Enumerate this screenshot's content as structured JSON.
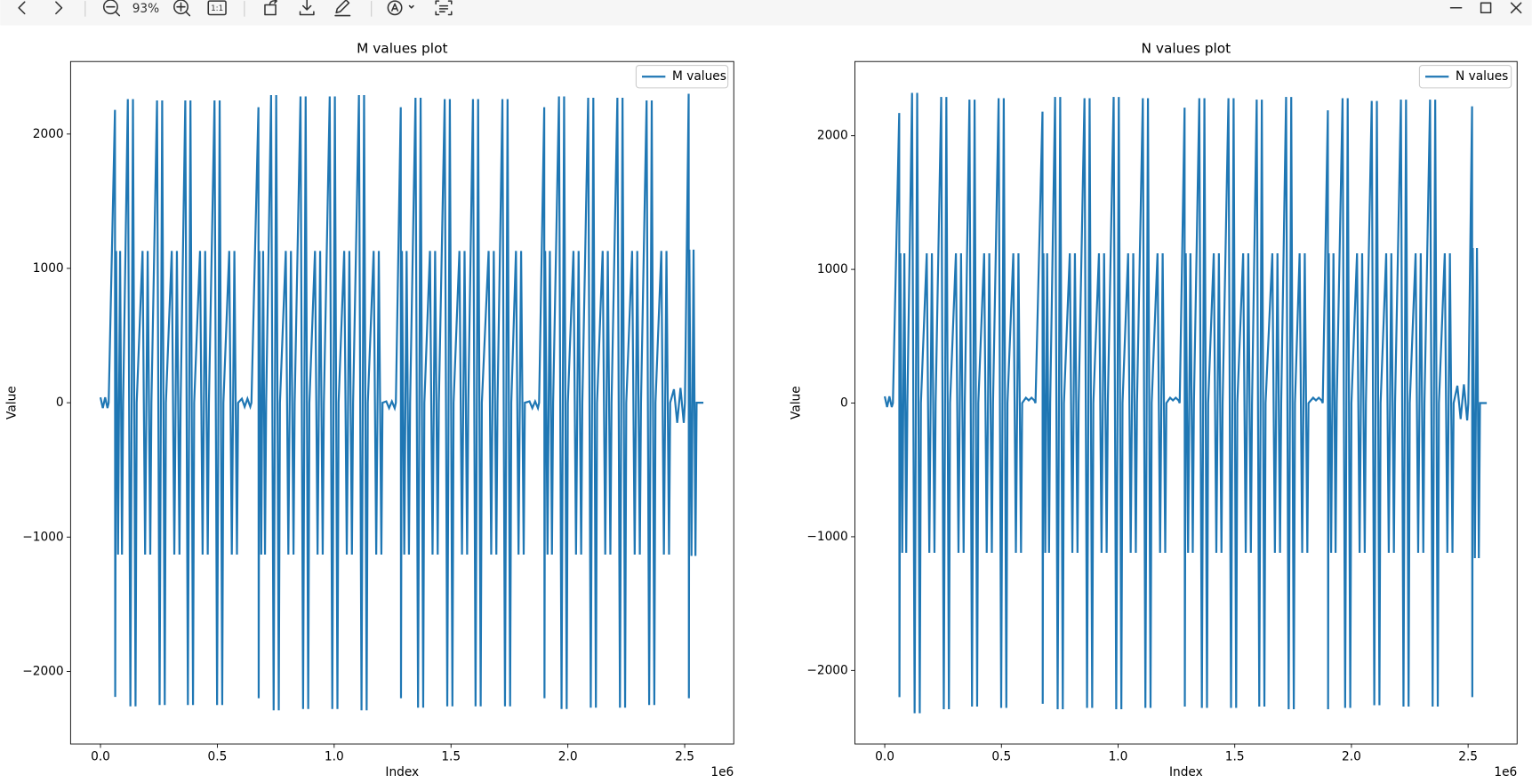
{
  "toolbar": {
    "zoom": "93%",
    "actual_size": "1:1"
  },
  "chart_data": [
    {
      "type": "line",
      "title": "M values plot",
      "xlabel": "Index",
      "ylabel": "Value",
      "x_offset_label": "1e6",
      "legend": "upper right",
      "grid": false,
      "xlim": [
        -0.128,
        2.71
      ],
      "ylim": [
        -2540,
        2540
      ],
      "xticks": [
        {
          "value": 0,
          "label": "0.0"
        },
        0.5,
        {
          "value": 1,
          "label": "1.0"
        },
        1.5,
        {
          "value": 2,
          "label": "2.0"
        },
        2.5
      ],
      "yticks": [
        {
          "value": -2000,
          "label": "−2000"
        },
        {
          "value": -1000,
          "label": "−1000"
        },
        0,
        1000,
        2000
      ],
      "x": [
        0,
        0.01,
        0.02,
        0.03,
        0.035,
        0.062,
        0.063,
        0.067,
        0.075,
        0.084,
        0.092,
        0.097,
        0.117,
        0.128,
        0.139,
        0.15,
        0.155,
        0.18,
        0.191,
        0.202,
        0.213,
        0.218,
        0.242,
        0.253,
        0.264,
        0.275,
        0.28,
        0.305,
        0.316,
        0.327,
        0.338,
        0.343,
        0.363,
        0.374,
        0.385,
        0.396,
        0.401,
        0.426,
        0.437,
        0.448,
        0.459,
        0.464,
        0.488,
        0.499,
        0.51,
        0.521,
        0.526,
        0.551,
        0.562,
        0.573,
        0.584,
        0.589,
        0.605,
        0.617,
        0.629,
        0.641,
        0.646,
        0.676,
        0.677,
        0.68,
        0.688,
        0.696,
        0.704,
        0.709,
        0.73,
        0.741,
        0.752,
        0.763,
        0.768,
        0.793,
        0.804,
        0.815,
        0.826,
        0.831,
        0.856,
        0.867,
        0.878,
        0.889,
        0.894,
        0.918,
        0.929,
        0.94,
        0.951,
        0.956,
        0.981,
        0.992,
        1.003,
        1.014,
        1.019,
        1.043,
        1.054,
        1.065,
        1.076,
        1.081,
        1.106,
        1.117,
        1.128,
        1.139,
        1.144,
        1.169,
        1.18,
        1.191,
        1.202,
        1.207,
        1.223,
        1.235,
        1.247,
        1.259,
        1.264,
        1.285,
        1.286,
        1.29,
        1.3,
        1.31,
        1.32,
        1.325,
        1.348,
        1.359,
        1.37,
        1.381,
        1.386,
        1.41,
        1.421,
        1.432,
        1.443,
        1.448,
        1.473,
        1.484,
        1.495,
        1.506,
        1.511,
        1.536,
        1.547,
        1.558,
        1.569,
        1.574,
        1.594,
        1.605,
        1.616,
        1.627,
        1.632,
        1.661,
        1.672,
        1.683,
        1.694,
        1.699,
        1.72,
        1.731,
        1.742,
        1.753,
        1.758,
        1.778,
        1.789,
        1.8,
        1.811,
        1.816,
        1.836,
        1.848,
        1.86,
        1.872,
        1.877,
        1.899,
        1.9,
        1.903,
        1.913,
        1.923,
        1.932,
        1.937,
        1.962,
        1.973,
        1.984,
        1.995,
        2,
        2.024,
        2.035,
        2.046,
        2.057,
        2.062,
        2.087,
        2.098,
        2.109,
        2.12,
        2.125,
        2.149,
        2.16,
        2.171,
        2.182,
        2.187,
        2.212,
        2.223,
        2.234,
        2.245,
        2.25,
        2.275,
        2.286,
        2.297,
        2.308,
        2.313,
        2.337,
        2.348,
        2.359,
        2.37,
        2.375,
        2.4,
        2.411,
        2.422,
        2.433,
        2.438,
        2.454,
        2.468,
        2.482,
        2.496,
        2.501,
        2.517,
        2.518,
        2.52,
        2.529,
        2.538,
        2.546,
        2.551,
        2.58
      ],
      "series": [
        {
          "name": "M values",
          "color": "#1f77b4",
          "values": [
            40,
            -40,
            40,
            -40,
            0,
            2180,
            -2190,
            1130,
            -1130,
            1130,
            -1130,
            0,
            2260,
            -2260,
            2260,
            -2260,
            0,
            1130,
            -1130,
            1130,
            -1130,
            0,
            2250,
            -2250,
            2250,
            -2250,
            0,
            1130,
            -1130,
            1130,
            -1130,
            0,
            2250,
            -2250,
            2250,
            -2250,
            0,
            1130,
            -1130,
            1130,
            -1130,
            0,
            2250,
            -2250,
            2250,
            -2250,
            0,
            1130,
            -1130,
            1130,
            -1130,
            0,
            30,
            -30,
            30,
            -30,
            0,
            2200,
            -2200,
            1130,
            -1130,
            1130,
            -1130,
            0,
            2290,
            -2290,
            2290,
            -2290,
            0,
            1130,
            -1130,
            1130,
            -1130,
            0,
            2280,
            -2280,
            2280,
            -2280,
            0,
            1130,
            -1130,
            1130,
            -1130,
            0,
            2280,
            -2280,
            2280,
            -2280,
            0,
            1130,
            -1130,
            1130,
            -1130,
            0,
            2290,
            -2290,
            2290,
            -2290,
            0,
            1130,
            -1130,
            1130,
            -1130,
            0,
            10,
            -40,
            10,
            -40,
            0,
            2200,
            -2200,
            1130,
            -1130,
            1130,
            -1130,
            0,
            2270,
            -2270,
            2270,
            -2270,
            0,
            1130,
            -1130,
            1130,
            -1130,
            0,
            2260,
            -2260,
            2260,
            -2260,
            0,
            1130,
            -1130,
            1130,
            -1130,
            0,
            2260,
            -2260,
            2260,
            -2260,
            0,
            1130,
            -1130,
            1130,
            -1130,
            0,
            2260,
            -2260,
            2260,
            -2260,
            0,
            1130,
            -1130,
            1130,
            -1130,
            0,
            10,
            -40,
            10,
            -40,
            0,
            2200,
            -2200,
            1130,
            -1130,
            1130,
            -1130,
            0,
            2280,
            -2280,
            2280,
            -2280,
            0,
            1130,
            -1130,
            1130,
            -1130,
            0,
            2270,
            -2270,
            2270,
            -2270,
            0,
            1130,
            -1130,
            1130,
            -1130,
            0,
            2270,
            -2270,
            2270,
            -2270,
            0,
            1130,
            -1130,
            1130,
            -1130,
            0,
            2250,
            -2250,
            2250,
            -2250,
            0,
            1130,
            -1130,
            1130,
            -1130,
            0,
            100,
            -150,
            110,
            -150,
            0,
            2300,
            -2200,
            1140,
            -1140,
            1140,
            -1140,
            0,
            0
          ]
        }
      ]
    },
    {
      "type": "line",
      "title": "N values plot",
      "xlabel": "Index",
      "ylabel": "Value",
      "x_offset_label": "1e6",
      "legend": "upper right",
      "grid": false,
      "xlim": [
        -0.128,
        2.71
      ],
      "ylim": [
        -2550,
        2555
      ],
      "xticks": [
        {
          "value": 0,
          "label": "0.0"
        },
        0.5,
        {
          "value": 1,
          "label": "1.0"
        },
        1.5,
        {
          "value": 2,
          "label": "2.0"
        },
        2.5
      ],
      "yticks": [
        {
          "value": -2000,
          "label": "−2000"
        },
        {
          "value": -1000,
          "label": "−1000"
        },
        0,
        1000,
        2000
      ],
      "x": [
        0,
        0.01,
        0.02,
        0.03,
        0.035,
        0.062,
        0.063,
        0.067,
        0.075,
        0.084,
        0.092,
        0.097,
        0.117,
        0.128,
        0.139,
        0.15,
        0.155,
        0.18,
        0.191,
        0.202,
        0.213,
        0.218,
        0.242,
        0.253,
        0.264,
        0.275,
        0.28,
        0.305,
        0.316,
        0.327,
        0.338,
        0.343,
        0.363,
        0.374,
        0.385,
        0.396,
        0.401,
        0.426,
        0.437,
        0.448,
        0.459,
        0.464,
        0.488,
        0.499,
        0.51,
        0.521,
        0.526,
        0.551,
        0.562,
        0.573,
        0.584,
        0.589,
        0.605,
        0.617,
        0.629,
        0.641,
        0.646,
        0.676,
        0.677,
        0.68,
        0.688,
        0.696,
        0.704,
        0.709,
        0.73,
        0.741,
        0.752,
        0.763,
        0.768,
        0.793,
        0.804,
        0.815,
        0.826,
        0.831,
        0.856,
        0.867,
        0.878,
        0.889,
        0.894,
        0.918,
        0.929,
        0.94,
        0.951,
        0.956,
        0.981,
        0.992,
        1.003,
        1.014,
        1.019,
        1.043,
        1.054,
        1.065,
        1.076,
        1.081,
        1.106,
        1.117,
        1.128,
        1.139,
        1.144,
        1.169,
        1.18,
        1.191,
        1.202,
        1.207,
        1.223,
        1.235,
        1.247,
        1.259,
        1.264,
        1.285,
        1.286,
        1.29,
        1.3,
        1.31,
        1.32,
        1.325,
        1.348,
        1.359,
        1.37,
        1.381,
        1.386,
        1.41,
        1.421,
        1.432,
        1.443,
        1.448,
        1.473,
        1.484,
        1.495,
        1.506,
        1.511,
        1.536,
        1.547,
        1.558,
        1.569,
        1.574,
        1.594,
        1.605,
        1.616,
        1.627,
        1.632,
        1.661,
        1.672,
        1.683,
        1.694,
        1.699,
        1.72,
        1.731,
        1.742,
        1.753,
        1.758,
        1.778,
        1.789,
        1.8,
        1.811,
        1.816,
        1.836,
        1.848,
        1.86,
        1.872,
        1.877,
        1.899,
        1.9,
        1.903,
        1.913,
        1.923,
        1.932,
        1.937,
        1.962,
        1.973,
        1.984,
        1.995,
        2,
        2.024,
        2.035,
        2.046,
        2.057,
        2.062,
        2.087,
        2.098,
        2.109,
        2.12,
        2.125,
        2.149,
        2.16,
        2.171,
        2.182,
        2.187,
        2.212,
        2.223,
        2.234,
        2.245,
        2.25,
        2.275,
        2.286,
        2.297,
        2.308,
        2.313,
        2.337,
        2.348,
        2.359,
        2.37,
        2.375,
        2.4,
        2.411,
        2.422,
        2.433,
        2.438,
        2.454,
        2.468,
        2.482,
        2.496,
        2.501,
        2.517,
        2.518,
        2.52,
        2.529,
        2.538,
        2.546,
        2.551,
        2.58
      ],
      "series": [
        {
          "name": "N values",
          "color": "#1f77b4",
          "values": [
            50,
            -30,
            50,
            -30,
            0,
            2170,
            -2200,
            1120,
            -1120,
            1120,
            -1120,
            0,
            2320,
            -2320,
            2320,
            -2320,
            0,
            1120,
            -1120,
            1120,
            -1120,
            0,
            2290,
            -2290,
            2290,
            -2290,
            0,
            1120,
            -1120,
            1120,
            -1120,
            0,
            2270,
            -2270,
            2270,
            -2270,
            0,
            1120,
            -1120,
            1120,
            -1120,
            0,
            2280,
            -2280,
            2280,
            -2280,
            0,
            1120,
            -1120,
            1120,
            -1120,
            0,
            40,
            20,
            40,
            20,
            0,
            2180,
            -2250,
            1120,
            -1120,
            1120,
            -1120,
            0,
            2290,
            -2290,
            2290,
            -2290,
            0,
            1120,
            -1120,
            1120,
            -1120,
            0,
            2280,
            -2280,
            2280,
            -2280,
            0,
            1120,
            -1120,
            1120,
            -1120,
            0,
            2290,
            -2290,
            2290,
            -2290,
            0,
            1120,
            -1120,
            1120,
            -1120,
            0,
            2280,
            -2280,
            2280,
            -2280,
            0,
            1120,
            -1120,
            1120,
            -1120,
            0,
            40,
            20,
            40,
            20,
            0,
            2210,
            -2270,
            1120,
            -1120,
            1120,
            -1120,
            0,
            2280,
            -2280,
            2280,
            -2280,
            0,
            1120,
            -1120,
            1120,
            -1120,
            0,
            2280,
            -2280,
            2280,
            -2280,
            0,
            1120,
            -1120,
            1120,
            -1120,
            0,
            2270,
            -2270,
            2270,
            -2270,
            0,
            1120,
            -1120,
            1120,
            -1120,
            0,
            2290,
            -2290,
            2290,
            -2290,
            0,
            1120,
            -1120,
            1120,
            -1120,
            0,
            40,
            20,
            40,
            20,
            0,
            2190,
            -2290,
            1120,
            -1120,
            1120,
            -1120,
            0,
            2280,
            -2280,
            2280,
            -2280,
            0,
            1120,
            -1120,
            1120,
            -1120,
            0,
            2260,
            -2260,
            2260,
            -2260,
            0,
            1120,
            -1120,
            1120,
            -1120,
            0,
            2270,
            -2270,
            2270,
            -2270,
            0,
            1120,
            -1120,
            1120,
            -1120,
            0,
            2270,
            -2270,
            2270,
            -2270,
            0,
            1120,
            -1120,
            1120,
            -1120,
            0,
            130,
            -120,
            140,
            -130,
            0,
            2220,
            -2200,
            1160,
            -1160,
            1160,
            -1160,
            0,
            0
          ]
        }
      ]
    }
  ]
}
